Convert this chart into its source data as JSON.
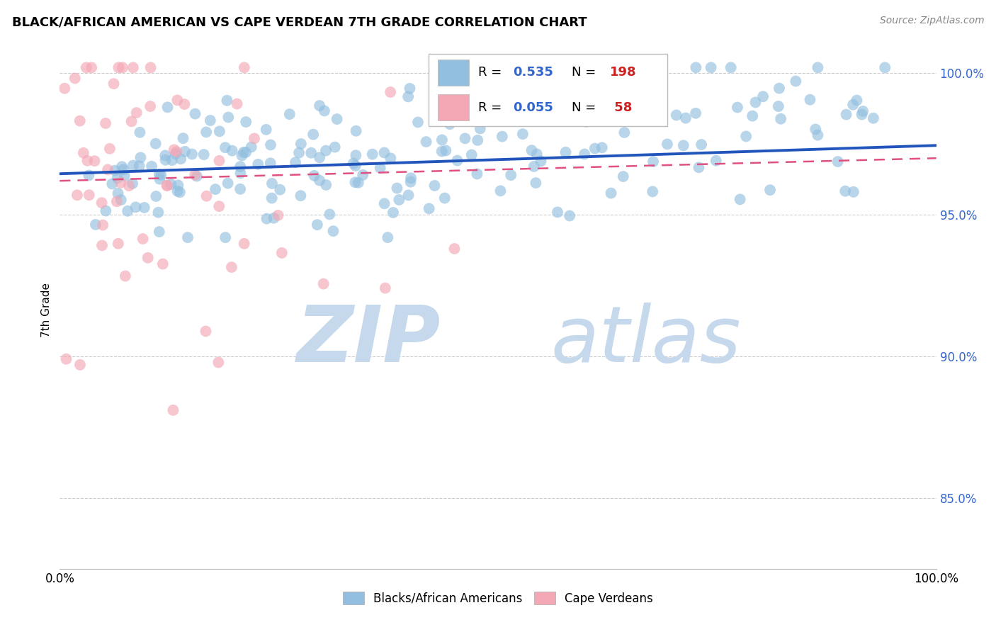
{
  "title": "BLACK/AFRICAN AMERICAN VS CAPE VERDEAN 7TH GRADE CORRELATION CHART",
  "source": "Source: ZipAtlas.com",
  "ylabel": "7th Grade",
  "right_ytick_labels": [
    "85.0%",
    "90.0%",
    "95.0%",
    "100.0%"
  ],
  "right_ytick_values": [
    0.85,
    0.9,
    0.95,
    1.0
  ],
  "legend_blue_R": "0.535",
  "legend_blue_N": "198",
  "legend_pink_R": "0.055",
  "legend_pink_N": " 58",
  "blue_color": "#92BFE0",
  "pink_color": "#F4A7B5",
  "blue_line_color": "#2255BB",
  "pink_line_color": "#E05080",
  "legend_label_blue": "Blacks/African Americans",
  "legend_label_pink": "Cape Verdeans",
  "blue_R": 0.535,
  "pink_R": 0.055,
  "blue_N": 198,
  "pink_N": 58,
  "xlim": [
    0.0,
    1.0
  ],
  "ylim": [
    0.825,
    1.008
  ],
  "grid_levels": [
    0.85,
    0.9,
    0.95,
    1.0
  ],
  "seed": 42,
  "watermark_zip": "ZIP",
  "watermark_atlas": "atlas",
  "watermark_color": "#C5D8EC",
  "background_color": "#FFFFFF",
  "grid_color": "#CCCCCC"
}
